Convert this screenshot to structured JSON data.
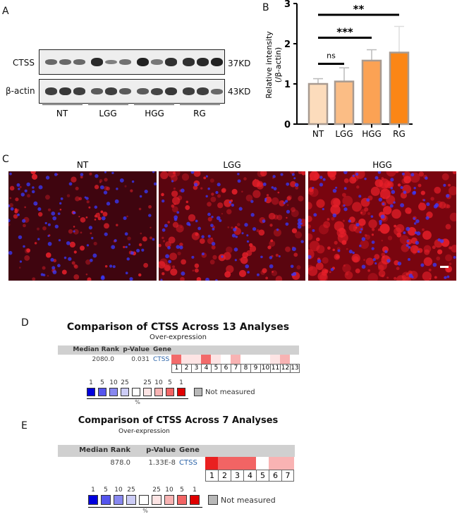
{
  "panel_labels": {
    "a": "A",
    "b": "B",
    "c": "C",
    "d": "D",
    "e": "E"
  },
  "blot": {
    "rows": [
      {
        "label": "CTSS",
        "size": "37KD"
      },
      {
        "label": "β-actin",
        "size": "43KD"
      }
    ],
    "groups": [
      "NT",
      "LGG",
      "HGG",
      "RG"
    ],
    "ctss_intensity": [
      0.5,
      0.5,
      0.5,
      0.95,
      0.35,
      0.45,
      1,
      0.4,
      0.9,
      0.9,
      0.95,
      1
    ],
    "actin_intensity": [
      0.8,
      0.85,
      0.8,
      0.6,
      0.8,
      0.6,
      0.6,
      0.75,
      0.85,
      0.8,
      0.8,
      0.5
    ]
  },
  "chart_data": {
    "type": "bar",
    "categories": [
      "NT",
      "LGG",
      "HGG",
      "RG"
    ],
    "values": [
      1.0,
      1.06,
      1.58,
      1.78
    ],
    "error_upper": [
      1.13,
      1.4,
      1.85,
      2.43
    ],
    "ylabel": "Relative intensity\n(/β-actin)",
    "ylim": [
      0,
      3
    ],
    "yticks": [
      0,
      1,
      2,
      3
    ],
    "colors": [
      "#fcdcbc",
      "#fbbd85",
      "#fba254",
      "#fb8616"
    ],
    "significance": [
      {
        "from": "NT",
        "to": "LGG",
        "label": "ns",
        "y": 1.5
      },
      {
        "from": "NT",
        "to": "HGG",
        "label": "***",
        "y": 2.15
      },
      {
        "from": "NT",
        "to": "RG",
        "label": "**",
        "y": 2.72
      }
    ]
  },
  "micro": {
    "labels": [
      "NT",
      "LGG",
      "HGG"
    ],
    "red_density": [
      0.25,
      0.55,
      0.9
    ]
  },
  "oncomine": [
    {
      "title": "Comparison of CTSS Across 13 Analyses",
      "subtitle": "Over-expression",
      "headers": [
        "Median Rank",
        "p-Value",
        "Gene"
      ],
      "median_rank": "2080.0",
      "p_value": "0.031",
      "gene": "CTSS",
      "cells": [
        "1",
        "2",
        "3",
        "4",
        "5",
        "6",
        "7",
        "8",
        "9",
        "10",
        "11",
        "12",
        "13"
      ],
      "heat": [
        "#f26a6a",
        "#fde4e4",
        "#fde4e4",
        "#f26a6a",
        "#fde4e4",
        "#ffffff",
        "#f8b3b3",
        "#ffffff",
        "#ffffff",
        "#ffffff",
        "#fde4e4",
        "#f8b3b3",
        "#ffffff"
      ]
    },
    {
      "title": "Comparison of CTSS Across 7 Analyses",
      "subtitle": "Over-expression",
      "headers": [
        "Median Rank",
        "p-Value",
        "Gene"
      ],
      "median_rank": "878.0",
      "p_value": "1.33E-8",
      "gene": "CTSS",
      "cells": [
        "1",
        "2",
        "3",
        "4",
        "5",
        "6",
        "7"
      ],
      "heat": [
        "#ea2020",
        "#f26464",
        "#f26464",
        "#f26464",
        "#ffffff",
        "#f9b3b3",
        "#f9b3b3"
      ]
    }
  ],
  "legend": {
    "numbers": [
      "1",
      "5",
      "10",
      "25",
      "",
      "25",
      "10",
      "5",
      "1"
    ],
    "colors": [
      "#0000dd",
      "#5555ee",
      "#8888f0",
      "#ccccf6",
      "#ffffff",
      "#fde4e4",
      "#f8b3b3",
      "#f26464",
      "#e00000"
    ],
    "percent": "%",
    "not_measured": "Not measured",
    "not_measured_color": "#b8b8b8"
  }
}
